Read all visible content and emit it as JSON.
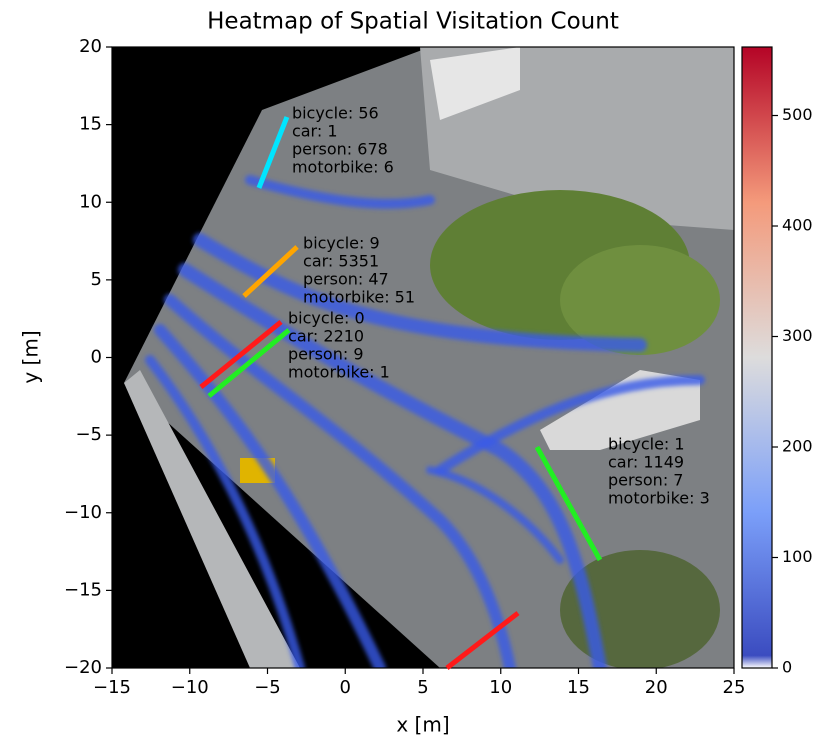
{
  "chart_data": {
    "type": "heatmap",
    "title": "Heatmap of Spatial Visitation Count",
    "x_label": "x [m]",
    "y_label": "y [m]",
    "xlim": [
      -15,
      25
    ],
    "ylim": [
      -20,
      20
    ],
    "xticks": [
      {
        "value": -15,
        "label": "−15"
      },
      {
        "value": -10,
        "label": "−10"
      },
      {
        "value": -5,
        "label": "−5"
      },
      0,
      5,
      10,
      15,
      20,
      25
    ],
    "yticks": [
      {
        "value": -20,
        "label": "−20"
      },
      {
        "value": -15,
        "label": "−15"
      },
      {
        "value": -10,
        "label": "−10"
      },
      {
        "value": -5,
        "label": "−5"
      },
      0,
      5,
      10,
      15,
      20
    ],
    "colormap": "coolwarm",
    "clim": [
      0,
      562
    ],
    "cticks": [
      0,
      100,
      200,
      300,
      400,
      500
    ],
    "counting_lines": [
      {
        "color": "#00e5ff",
        "x": [
          -5.55,
          -3.75
        ],
        "y": [
          10.92,
          15.49
        ],
        "labels": [
          "bicycle: 56",
          "car: 1",
          "person: 678",
          "motorbike: 6"
        ]
      },
      {
        "color": "#ffa500",
        "x": [
          -6.51,
          -3.1
        ],
        "y": [
          3.96,
          7.12
        ],
        "labels": [
          "bicycle: 9",
          "car: 5351",
          "person: 47",
          "motorbike: 51"
        ]
      },
      {
        "color": "#ff1a1a",
        "x": [
          -9.28,
          -4.13
        ],
        "y": [
          -1.9,
          2.29
        ],
        "labels": [
          "bicycle: 0",
          "car: 2210",
          "person: 9",
          "motorbike: 1"
        ]
      },
      {
        "color": "#22ee22",
        "x": [
          -8.76,
          -3.62
        ],
        "y": [
          -2.48,
          1.77
        ]
      },
      {
        "color": "#22ee22",
        "x": [
          12.33,
          16.38
        ],
        "y": [
          -5.77,
          -13.04
        ],
        "labels": [
          "bicycle: 1",
          "car: 1149",
          "person: 7",
          "motorbike: 3"
        ]
      },
      {
        "color": "#ff1a1a",
        "x": [
          6.54,
          11.11
        ],
        "y": [
          -20,
          -16.46
        ]
      }
    ]
  }
}
